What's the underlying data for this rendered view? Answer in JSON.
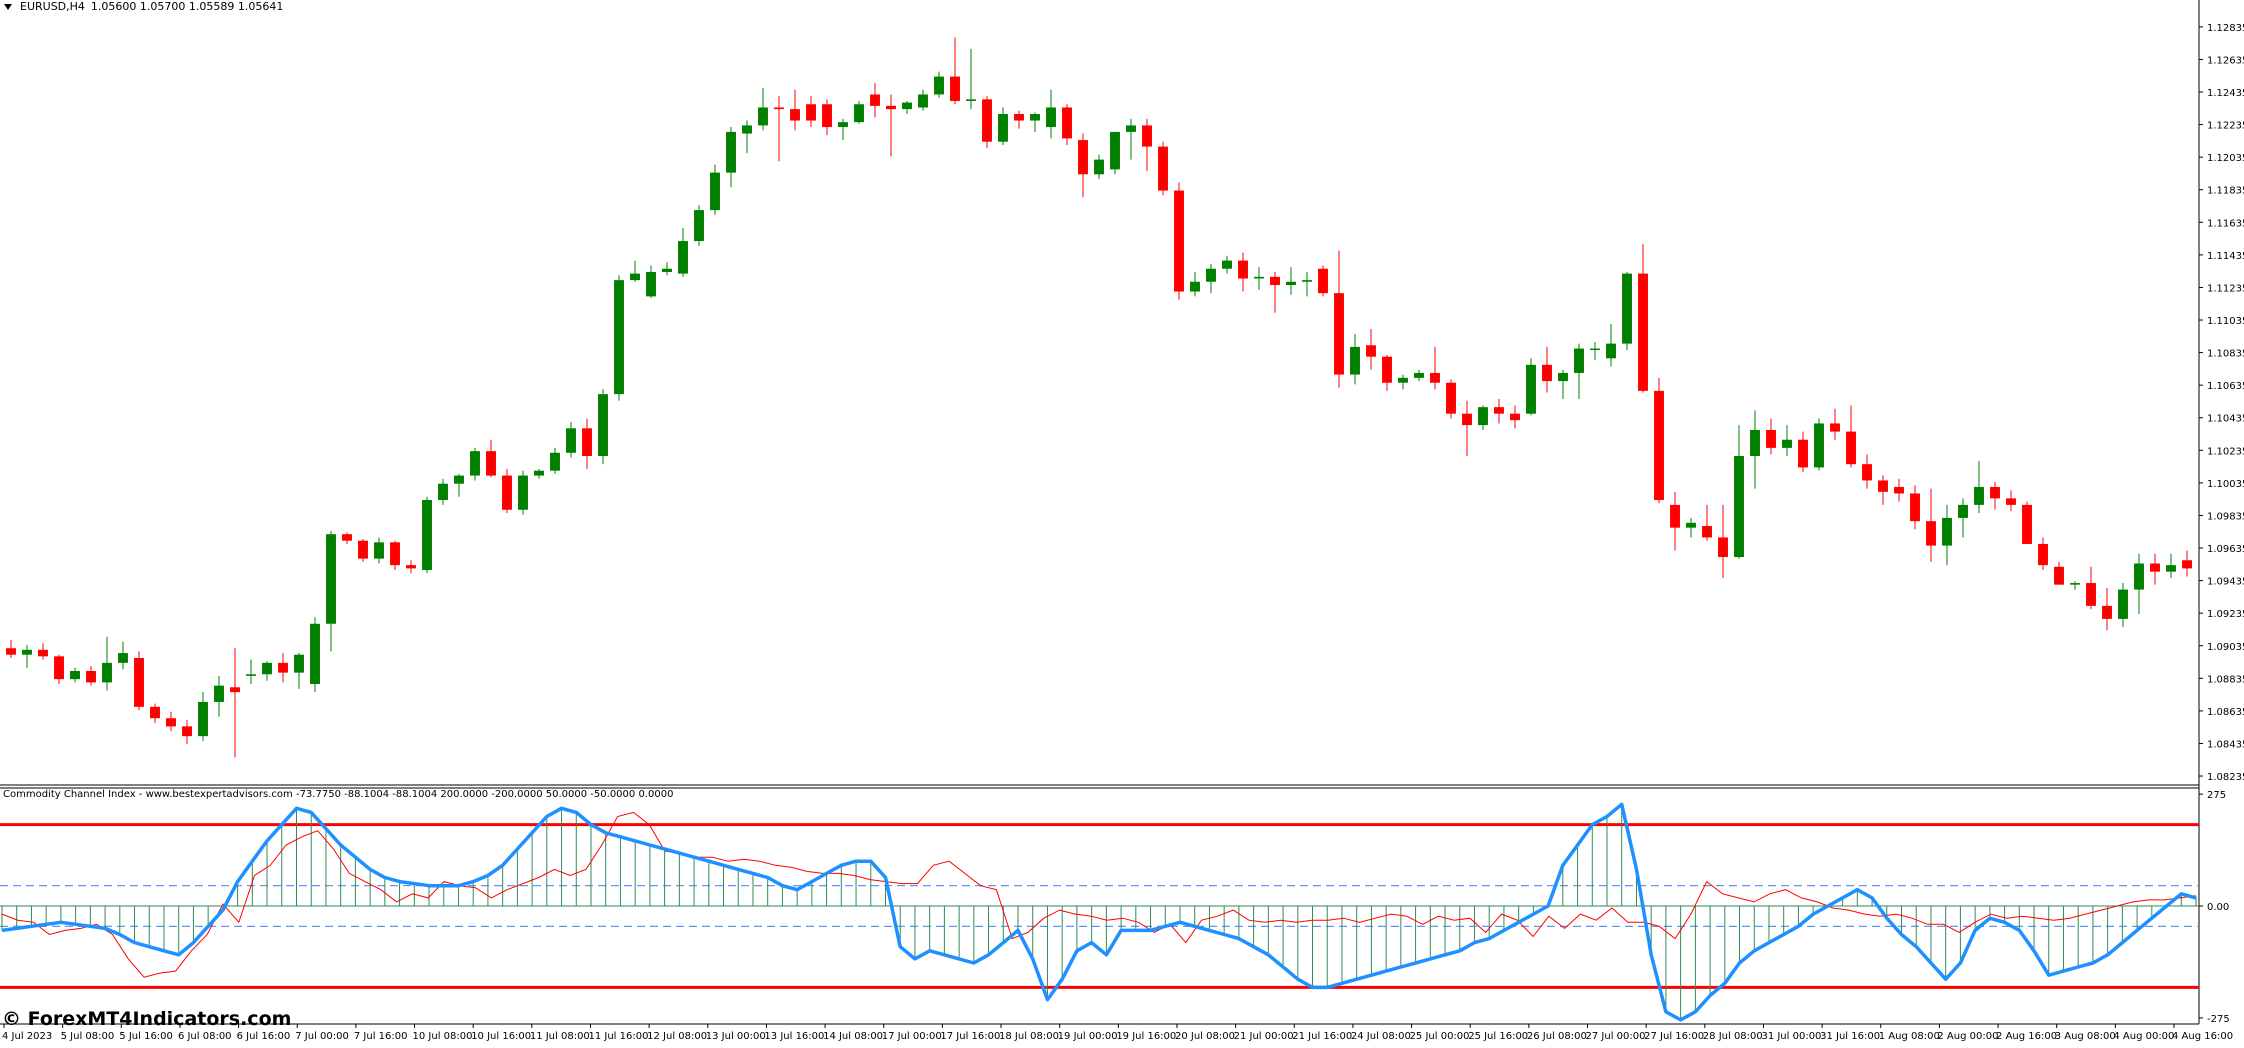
{
  "header": {
    "symbol_tf": "EURUSD,H4",
    "ohlc": "1.05600 1.05700 1.05589 1.05641"
  },
  "indicator": {
    "label": "Commodity Channel Index - www.bestexpertadvisors.com -73.7750 -88.1004 -88.1004 200.0000 -200.0000 50.0000 -50.0000 0.0000"
  },
  "watermark": "© ForexMT4Indicators.com",
  "colors": {
    "bull": "#008000",
    "bear": "#ff0000",
    "cci_main": "#1e90ff",
    "cci_signal": "#ff0000",
    "level_outer": "#ff0000",
    "level_inner": "#6495ed",
    "histogram": "#2e8b57"
  },
  "chart_data": [
    {
      "type": "candlestick",
      "title": "EURUSD,H4",
      "y_ticks": [
        "1.12835",
        "1.12635",
        "1.12435",
        "1.12235",
        "1.12035",
        "1.11835",
        "1.11635",
        "1.11435",
        "1.11235",
        "1.11035",
        "1.10835",
        "1.10635",
        "1.10435",
        "1.10235",
        "1.10035",
        "1.09835",
        "1.09635",
        "1.09435",
        "1.09235",
        "1.09035",
        "1.08835",
        "1.08635",
        "1.08435",
        "1.08235"
      ],
      "ylim": [
        1.0818,
        1.13
      ],
      "x_ticks": [
        "4 Jul 2023",
        "5 Jul 08:00",
        "5 Jul 16:00",
        "6 Jul 08:00",
        "6 Jul 16:00",
        "7 Jul 00:00",
        "7 Jul 16:00",
        "10 Jul 08:00",
        "10 Jul 16:00",
        "11 Jul 08:00",
        "11 Jul 16:00",
        "12 Jul 08:00",
        "13 Jul 00:00",
        "13 Jul 16:00",
        "14 Jul 08:00",
        "17 Jul 00:00",
        "17 Jul 16:00",
        "18 Jul 08:00",
        "19 Jul 00:00",
        "19 Jul 16:00",
        "20 Jul 08:00",
        "21 Jul 00:00",
        "21 Jul 16:00",
        "24 Jul 08:00",
        "25 Jul 00:00",
        "25 Jul 16:00",
        "26 Jul 08:00",
        "27 Jul 00:00",
        "27 Jul 16:00",
        "28 Jul 08:00",
        "31 Jul 00:00",
        "31 Jul 16:00",
        "1 Aug 08:00",
        "2 Aug 00:00",
        "2 Aug 16:00",
        "3 Aug 08:00",
        "4 Aug 00:00",
        "4 Aug 16:00"
      ],
      "candles": [
        [
          1.0902,
          1.0907,
          1.0896,
          1.0898
        ],
        [
          1.0898,
          1.0904,
          1.089,
          1.0901
        ],
        [
          1.0901,
          1.0905,
          1.0895,
          1.0897
        ],
        [
          1.0897,
          1.0898,
          1.088,
          1.0883
        ],
        [
          1.0883,
          1.089,
          1.0881,
          1.0888
        ],
        [
          1.0888,
          1.0891,
          1.0879,
          1.0881
        ],
        [
          1.0881,
          1.0909,
          1.0876,
          1.0893
        ],
        [
          1.0893,
          1.0906,
          1.0889,
          1.0899
        ],
        [
          1.0896,
          1.09,
          1.0864,
          1.0866
        ],
        [
          1.0866,
          1.0868,
          1.0856,
          1.0859
        ],
        [
          1.0859,
          1.0863,
          1.0851,
          1.0854
        ],
        [
          1.0854,
          1.0858,
          1.0843,
          1.0848
        ],
        [
          1.0848,
          1.0875,
          1.0845,
          1.0869
        ],
        [
          1.0869,
          1.0885,
          1.086,
          1.0879
        ],
        [
          1.0878,
          1.0902,
          1.0835,
          1.0875
        ],
        [
          1.0885,
          1.0895,
          1.088,
          1.0886
        ],
        [
          1.0886,
          1.0894,
          1.0882,
          1.0893
        ],
        [
          1.0893,
          1.0899,
          1.0881,
          1.0887
        ],
        [
          1.0887,
          1.0899,
          1.0877,
          1.0898
        ],
        [
          1.088,
          1.0921,
          1.0875,
          1.0917
        ],
        [
          1.0917,
          1.0974,
          1.09,
          1.0972
        ],
        [
          1.0972,
          1.0973,
          1.0966,
          1.0968
        ],
        [
          1.0968,
          1.0969,
          1.0955,
          1.0957
        ],
        [
          1.0957,
          1.097,
          1.0954,
          1.0967
        ],
        [
          1.0967,
          1.0968,
          1.095,
          1.0953
        ],
        [
          1.0953,
          1.0956,
          1.0948,
          1.0951
        ],
        [
          1.095,
          1.0995,
          1.0948,
          1.0993
        ],
        [
          1.0993,
          1.1006,
          1.099,
          1.1003
        ],
        [
          1.1003,
          1.1009,
          1.0995,
          1.1008
        ],
        [
          1.1008,
          1.1025,
          1.1005,
          1.1023
        ],
        [
          1.1023,
          1.103,
          1.1007,
          1.1008
        ],
        [
          1.1008,
          1.1012,
          1.0985,
          1.0987
        ],
        [
          1.0987,
          1.1011,
          1.0984,
          1.1008
        ],
        [
          1.1008,
          1.1012,
          1.1006,
          1.1011
        ],
        [
          1.1011,
          1.1025,
          1.1009,
          1.1022
        ],
        [
          1.1022,
          1.1041,
          1.1019,
          1.1037
        ],
        [
          1.1037,
          1.1043,
          1.1012,
          1.102
        ],
        [
          1.102,
          1.1061,
          1.1015,
          1.1058
        ],
        [
          1.1058,
          1.1131,
          1.1054,
          1.1128
        ],
        [
          1.1128,
          1.114,
          1.1127,
          1.1132
        ],
        [
          1.1118,
          1.1137,
          1.1117,
          1.1133
        ],
        [
          1.1133,
          1.1139,
          1.1131,
          1.1135
        ],
        [
          1.1132,
          1.116,
          1.113,
          1.1152
        ],
        [
          1.1152,
          1.1174,
          1.1149,
          1.1171
        ],
        [
          1.1171,
          1.1199,
          1.1168,
          1.1194
        ],
        [
          1.1194,
          1.1222,
          1.1185,
          1.1219
        ],
        [
          1.1218,
          1.1226,
          1.1206,
          1.1223
        ],
        [
          1.1223,
          1.1246,
          1.122,
          1.1234
        ],
        [
          1.1234,
          1.1241,
          1.1201,
          1.1233
        ],
        [
          1.1233,
          1.1245,
          1.122,
          1.1226
        ],
        [
          1.1236,
          1.1241,
          1.1222,
          1.1226
        ],
        [
          1.1236,
          1.1239,
          1.1217,
          1.1222
        ],
        [
          1.1222,
          1.1227,
          1.1214,
          1.1225
        ],
        [
          1.1225,
          1.1238,
          1.1224,
          1.1236
        ],
        [
          1.1242,
          1.1249,
          1.1228,
          1.1235
        ],
        [
          1.1235,
          1.1242,
          1.1204,
          1.1233
        ],
        [
          1.1233,
          1.1238,
          1.123,
          1.1237
        ],
        [
          1.1234,
          1.1245,
          1.1232,
          1.1242
        ],
        [
          1.1242,
          1.1256,
          1.124,
          1.1253
        ],
        [
          1.1253,
          1.1277,
          1.1236,
          1.1238
        ],
        [
          1.1238,
          1.127,
          1.1233,
          1.1239
        ],
        [
          1.1239,
          1.1241,
          1.1209,
          1.1213
        ],
        [
          1.1213,
          1.1234,
          1.1211,
          1.123
        ],
        [
          1.123,
          1.1232,
          1.1221,
          1.1226
        ],
        [
          1.1226,
          1.1231,
          1.1219,
          1.123
        ],
        [
          1.1222,
          1.1245,
          1.1215,
          1.1234
        ],
        [
          1.1234,
          1.1236,
          1.1211,
          1.1215
        ],
        [
          1.1214,
          1.1218,
          1.1179,
          1.1193
        ],
        [
          1.1193,
          1.1205,
          1.119,
          1.1202
        ],
        [
          1.1196,
          1.1219,
          1.1193,
          1.1219
        ],
        [
          1.1219,
          1.1227,
          1.1202,
          1.1223
        ],
        [
          1.1223,
          1.1227,
          1.1195,
          1.121
        ],
        [
          1.121,
          1.1213,
          1.118,
          1.1183
        ],
        [
          1.1183,
          1.1188,
          1.1116,
          1.1121
        ],
        [
          1.1121,
          1.1133,
          1.1118,
          1.1127
        ],
        [
          1.1127,
          1.1138,
          1.112,
          1.1135
        ],
        [
          1.1135,
          1.1143,
          1.1132,
          1.114
        ],
        [
          1.114,
          1.1145,
          1.1121,
          1.1129
        ],
        [
          1.1129,
          1.1136,
          1.1122,
          1.113
        ],
        [
          1.113,
          1.1133,
          1.1108,
          1.1125
        ],
        [
          1.1125,
          1.1136,
          1.1119,
          1.1127
        ],
        [
          1.1127,
          1.1133,
          1.1118,
          1.1128
        ],
        [
          1.1135,
          1.1137,
          1.1118,
          1.112
        ],
        [
          1.112,
          1.1146,
          1.1062,
          1.107
        ],
        [
          1.107,
          1.1095,
          1.1064,
          1.1087
        ],
        [
          1.1088,
          1.1098,
          1.1073,
          1.1081
        ],
        [
          1.1081,
          1.1082,
          1.106,
          1.1065
        ],
        [
          1.1065,
          1.107,
          1.1061,
          1.1068
        ],
        [
          1.1068,
          1.1073,
          1.1066,
          1.1071
        ],
        [
          1.1071,
          1.1087,
          1.1061,
          1.1065
        ],
        [
          1.1065,
          1.1067,
          1.1043,
          1.1046
        ],
        [
          1.1046,
          1.1054,
          1.102,
          1.1039
        ],
        [
          1.1039,
          1.1051,
          1.1036,
          1.105
        ],
        [
          1.105,
          1.1055,
          1.104,
          1.1046
        ],
        [
          1.1046,
          1.1051,
          1.1037,
          1.1042
        ],
        [
          1.1046,
          1.108,
          1.1045,
          1.1076
        ],
        [
          1.1076,
          1.1087,
          1.1059,
          1.1066
        ],
        [
          1.1066,
          1.1073,
          1.1055,
          1.1071
        ],
        [
          1.1071,
          1.1089,
          1.1055,
          1.1086
        ],
        [
          1.1086,
          1.109,
          1.1079,
          1.1086
        ],
        [
          1.108,
          1.1101,
          1.1075,
          1.1089
        ],
        [
          1.1089,
          1.1133,
          1.1085,
          1.1132
        ],
        [
          1.1132,
          1.115,
          1.1059,
          1.106
        ],
        [
          1.106,
          1.1068,
          1.0991,
          1.0993
        ],
        [
          1.099,
          1.0998,
          1.0962,
          1.0976
        ],
        [
          1.0976,
          1.0982,
          1.097,
          1.0979
        ],
        [
          1.0977,
          1.099,
          1.0968,
          1.097
        ],
        [
          1.097,
          1.099,
          1.0945,
          1.0958
        ],
        [
          1.0958,
          1.1039,
          1.0957,
          1.102
        ],
        [
          1.102,
          1.1048,
          1.1,
          1.1036
        ],
        [
          1.1036,
          1.1043,
          1.1021,
          1.1025
        ],
        [
          1.1025,
          1.1039,
          1.102,
          1.103
        ],
        [
          1.103,
          1.1035,
          1.101,
          1.1013
        ],
        [
          1.1013,
          1.1043,
          1.1011,
          1.104
        ],
        [
          1.104,
          1.1049,
          1.103,
          1.1035
        ],
        [
          1.1035,
          1.1051,
          1.1013,
          1.1015
        ],
        [
          1.1015,
          1.1021,
          1.1,
          1.1005
        ],
        [
          1.1005,
          1.1008,
          1.099,
          1.0998
        ],
        [
          1.1001,
          1.1006,
          1.0992,
          1.0997
        ],
        [
          1.0997,
          1.1002,
          1.0975,
          1.098
        ],
        [
          1.098,
          1.1,
          1.0955,
          1.0965
        ],
        [
          1.0965,
          1.099,
          1.0953,
          1.0982
        ],
        [
          1.0982,
          1.0994,
          1.097,
          1.099
        ],
        [
          1.099,
          1.1017,
          1.0985,
          1.1001
        ],
        [
          1.1001,
          1.1004,
          1.0987,
          1.0994
        ],
        [
          1.0994,
          1.0999,
          1.0986,
          1.099
        ],
        [
          1.099,
          1.0992,
          1.0966,
          1.0966
        ],
        [
          1.0966,
          1.097,
          1.095,
          1.0953
        ],
        [
          1.0952,
          1.0955,
          1.0941,
          1.0941
        ],
        [
          1.0941,
          1.0943,
          1.0938,
          1.0942
        ],
        [
          1.0942,
          1.0952,
          1.0926,
          1.0928
        ],
        [
          1.0928,
          1.0939,
          1.0913,
          1.092
        ],
        [
          1.092,
          1.0942,
          1.0915,
          1.0938
        ],
        [
          1.0938,
          1.096,
          1.0923,
          1.0954
        ],
        [
          1.0954,
          1.096,
          1.0941,
          1.0949
        ],
        [
          1.0949,
          1.096,
          1.0945,
          1.0953
        ],
        [
          1.0956,
          1.0962,
          1.0946,
          1.0951
        ]
      ]
    },
    {
      "type": "line",
      "title": "Commodity Channel Index - www.bestexpertadvisors.com",
      "y_ticks": [
        "275",
        "0.00",
        "-275"
      ],
      "ylim": [
        -290,
        290
      ],
      "levels": [
        200,
        -200,
        50,
        -50,
        0
      ],
      "series": [
        {
          "values": [
            -20,
            -35,
            -40,
            -70,
            -60,
            -55,
            -45,
            -70,
            -130,
            -175,
            -165,
            -160,
            -110,
            -70,
            5,
            -40,
            75,
            100,
            150,
            170,
            185,
            140,
            80,
            60,
            40,
            10,
            30,
            20,
            60,
            50,
            45,
            20,
            40,
            55,
            70,
            90,
            75,
            90,
            150,
            220,
            230,
            200,
            135,
            130,
            120,
            120,
            110,
            115,
            110,
            100,
            95,
            85,
            80,
            80,
            75,
            65,
            60,
            55,
            55,
            100,
            110,
            80,
            50,
            40,
            -80,
            -65,
            -30,
            -10,
            -20,
            -25,
            -35,
            -30,
            -40,
            -65,
            -45,
            -90,
            -35,
            -25,
            -10,
            -35,
            -40,
            -35,
            -40,
            -35,
            -35,
            -30,
            -40,
            -30,
            -20,
            -25,
            -45,
            -25,
            -35,
            -30,
            -65,
            -20,
            -35,
            -75,
            -25,
            -55,
            -20,
            -35,
            -5,
            -40,
            -40,
            -50,
            -80,
            -20,
            60,
            30,
            20,
            10,
            30,
            40,
            20,
            10,
            -5,
            -10,
            -20,
            -25,
            -20,
            -30,
            -45,
            -45,
            -65,
            -40,
            -20,
            -30,
            -25,
            -30,
            -35,
            -30,
            -20,
            -10,
            0,
            10,
            15,
            15,
            20,
            25
          ]
        },
        {
          "name": "",
          "values": [
            -60,
            -55,
            -50,
            -45,
            -40,
            -45,
            -50,
            -55,
            -70,
            -90,
            -100,
            -110,
            -120,
            -90,
            -50,
            -10,
            60,
            110,
            160,
            200,
            240,
            230,
            190,
            150,
            120,
            90,
            70,
            60,
            55,
            50,
            50,
            50,
            60,
            75,
            100,
            140,
            180,
            220,
            240,
            230,
            200,
            180,
            170,
            160,
            150,
            140,
            130,
            120,
            110,
            100,
            90,
            80,
            70,
            50,
            40,
            60,
            80,
            100,
            110,
            110,
            70,
            -100,
            -130,
            -110,
            -120,
            -130,
            -140,
            -120,
            -90,
            -60,
            -130,
            -230,
            -180,
            -110,
            -90,
            -120,
            -60,
            -60,
            -60,
            -50,
            -40,
            -50,
            -60,
            -70,
            -80,
            -100,
            -120,
            -150,
            -180,
            -200,
            -200,
            -190,
            -180,
            -170,
            -160,
            -150,
            -140,
            -130,
            -120,
            -110,
            -90,
            -80,
            -60,
            -40,
            -20,
            0,
            100,
            150,
            200,
            220,
            250,
            90,
            -120,
            -260,
            -280,
            -260,
            -220,
            -190,
            -140,
            -110,
            -90,
            -70,
            -50,
            -20,
            0,
            20,
            40,
            20,
            -30,
            -70,
            -100,
            -140,
            -180,
            -140,
            -60,
            -30,
            -40,
            -60,
            -110,
            -170,
            -160,
            -150,
            -140,
            -120,
            -90,
            -60,
            -30,
            0,
            30,
            20
          ]
        }
      ]
    }
  ]
}
